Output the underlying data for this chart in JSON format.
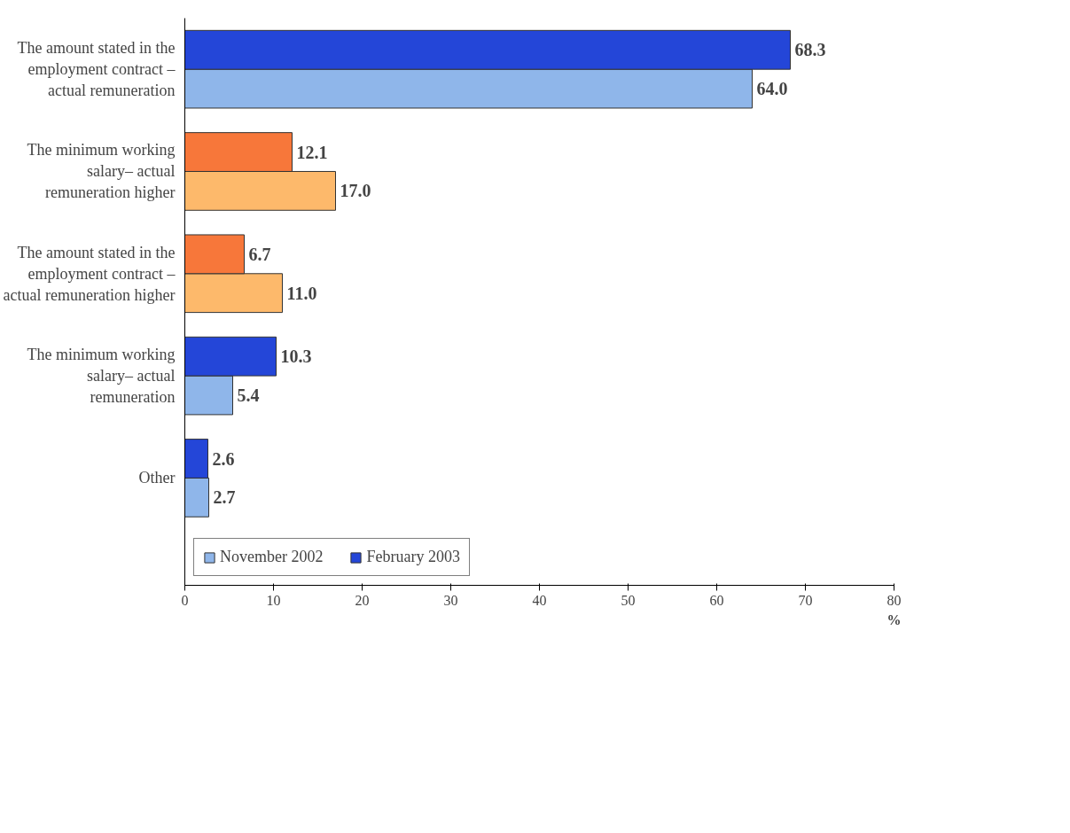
{
  "chart_data": {
    "type": "bar",
    "orientation": "horizontal",
    "categories": [
      "The amount stated in the employment contract – actual remuneration",
      "The minimum working salary– actual remuneration higher",
      "The amount stated in the employment contract – actual remuneration higher",
      "The minimum working salary– actual remuneration",
      "Other"
    ],
    "series": [
      {
        "name": "November 2002",
        "color": "#8fb6ea",
        "colors": [
          "#8fb6ea",
          "#fdb96b",
          "#fdb96b",
          "#8fb6ea",
          "#8fb6ea"
        ],
        "values": [
          64.0,
          17.0,
          11.0,
          5.4,
          2.7
        ],
        "value_labels": [
          "64.0",
          "17.0",
          "11.0",
          "5.4",
          "2.7"
        ]
      },
      {
        "name": "February 2003",
        "color": "#2446d8",
        "colors": [
          "#2446d8",
          "#f7773a",
          "#f7773a",
          "#2446d8",
          "#2446d8"
        ],
        "values": [
          68.3,
          12.1,
          6.7,
          10.3,
          2.6
        ],
        "value_labels": [
          "68.3",
          "12.1",
          "6.7",
          "10.3",
          "2.6"
        ]
      }
    ],
    "xlabel": "%",
    "xlim": [
      0,
      80
    ],
    "xticks": [
      0,
      10,
      20,
      30,
      40,
      50,
      60,
      70,
      80
    ],
    "legend": "bottom left",
    "grid": false
  }
}
